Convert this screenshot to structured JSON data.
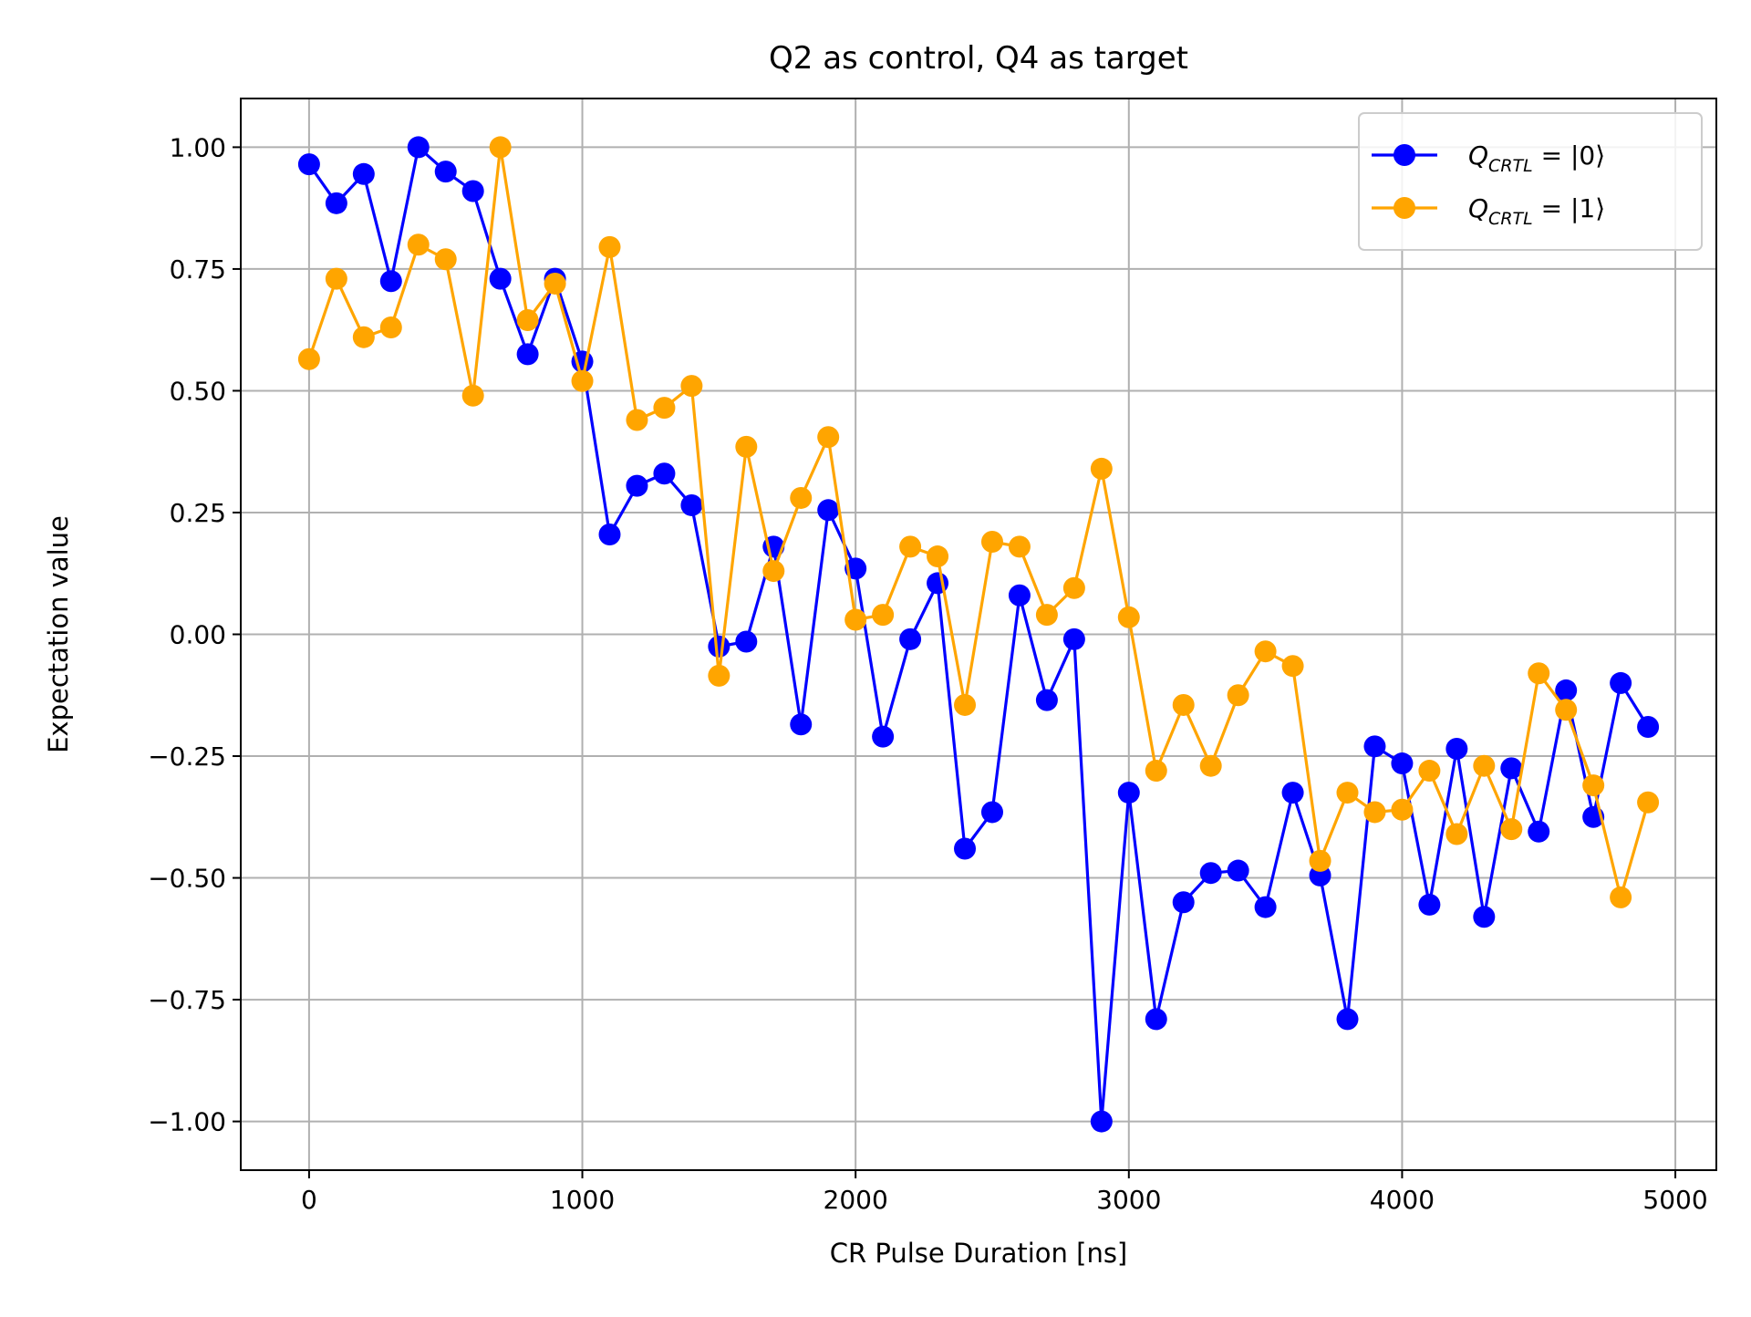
{
  "chart_data": {
    "type": "line",
    "title": "Q2 as control, Q4 as target",
    "xlabel": "CR Pulse Duration [ns]",
    "ylabel": "Expectation value",
    "xlim": [
      -250,
      5150
    ],
    "ylim": [
      -1.1,
      1.1
    ],
    "xticks": [
      0,
      1000,
      2000,
      3000,
      4000,
      5000
    ],
    "xtick_labels": [
      "0",
      "1000",
      "2000",
      "3000",
      "4000",
      "5000"
    ],
    "yticks": [
      1.0,
      0.75,
      0.5,
      0.25,
      0.0,
      -0.25,
      -0.5,
      -0.75,
      -1.0
    ],
    "ytick_labels": [
      "1.00",
      "0.75",
      "0.50",
      "0.25",
      "0.00",
      "−0.25",
      "−0.50",
      "−0.75",
      "−1.00"
    ],
    "grid": true,
    "legend_position": "top-right",
    "x": [
      0,
      100,
      200,
      300,
      400,
      500,
      600,
      700,
      800,
      900,
      1000,
      1100,
      1200,
      1300,
      1400,
      1500,
      1600,
      1700,
      1800,
      1900,
      2000,
      2100,
      2200,
      2300,
      2400,
      2500,
      2600,
      2700,
      2800,
      2900,
      3000,
      3100,
      3200,
      3300,
      3400,
      3500,
      3600,
      3700,
      3800,
      3900,
      4000,
      4100,
      4200,
      4300,
      4400,
      4500,
      4600,
      4700,
      4800,
      4900
    ],
    "series": [
      {
        "name": "Q_CRTL = |0⟩",
        "legend_main": "Q",
        "legend_sub": "CRTL",
        "legend_rest": " = |0⟩",
        "color": "#0000ff",
        "values": [
          0.965,
          0.885,
          0.945,
          0.725,
          1.0,
          0.95,
          0.91,
          0.73,
          0.575,
          0.73,
          0.56,
          0.205,
          0.305,
          0.33,
          0.265,
          -0.025,
          -0.015,
          0.18,
          -0.185,
          0.255,
          0.135,
          -0.21,
          -0.01,
          0.105,
          -0.44,
          -0.365,
          0.08,
          -0.135,
          -0.01,
          -1.0,
          -0.325,
          -0.79,
          -0.55,
          -0.49,
          -0.485,
          -0.56,
          -0.325,
          -0.495,
          -0.79,
          -0.23,
          -0.265,
          -0.555,
          -0.235,
          -0.58,
          -0.275,
          -0.405,
          -0.115,
          -0.375,
          -0.1,
          -0.19
        ]
      },
      {
        "name": "Q_CRTL = |1⟩",
        "legend_main": "Q",
        "legend_sub": "CRTL",
        "legend_rest": " = |1⟩",
        "color": "#ffa500",
        "values": [
          0.565,
          0.73,
          0.61,
          0.63,
          0.8,
          0.77,
          0.49,
          1.0,
          0.645,
          0.72,
          0.52,
          0.795,
          0.44,
          0.465,
          0.51,
          -0.085,
          0.385,
          0.13,
          0.28,
          0.405,
          0.03,
          0.04,
          0.18,
          0.16,
          -0.145,
          0.19,
          0.18,
          0.04,
          0.095,
          0.34,
          0.035,
          -0.28,
          -0.145,
          -0.27,
          -0.125,
          -0.035,
          -0.065,
          -0.465,
          -0.325,
          -0.365,
          -0.36,
          -0.28,
          -0.41,
          -0.27,
          -0.4,
          -0.08,
          -0.155,
          -0.31,
          -0.54,
          -0.345
        ]
      }
    ]
  }
}
